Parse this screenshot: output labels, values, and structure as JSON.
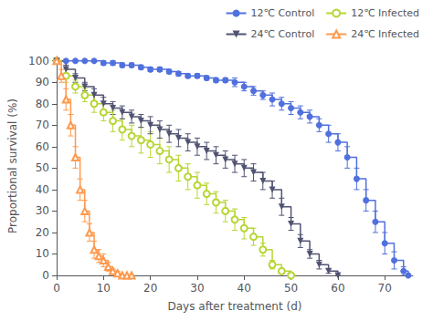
{
  "chart_data": {
    "type": "step",
    "xlabel": "Days after treatment (d)",
    "ylabel": "Proportional survival (%)",
    "xlim": [
      0,
      76
    ],
    "ylim": [
      0,
      102
    ],
    "xticks": [
      0,
      10,
      20,
      30,
      40,
      50,
      60,
      70
    ],
    "yticks": [
      0,
      10,
      20,
      30,
      40,
      50,
      60,
      70,
      80,
      90,
      100
    ],
    "grid": false,
    "legend": "upper right",
    "series": [
      {
        "name": "12℃ Control",
        "marker": "filled_circle",
        "x": [
          0,
          2,
          4,
          6,
          8,
          10,
          12,
          14,
          16,
          18,
          20,
          22,
          24,
          26,
          28,
          30,
          32,
          34,
          36,
          38,
          40,
          42,
          44,
          46,
          48,
          50,
          52,
          54,
          56,
          58,
          60,
          62,
          64,
          66,
          68,
          70,
          72,
          74,
          75
        ],
        "values": [
          100,
          100,
          100,
          100,
          100,
          99,
          99,
          98,
          98,
          97,
          96,
          96,
          95,
          94,
          93,
          93,
          92,
          91,
          91,
          90,
          88,
          86,
          84,
          82,
          80,
          78,
          76,
          74,
          70,
          66,
          62,
          55,
          45,
          35,
          25,
          15,
          7,
          2,
          0
        ],
        "yerr": [
          0,
          0,
          0,
          0,
          0,
          1,
          1,
          1,
          1,
          1,
          1,
          1,
          1,
          1,
          1,
          1,
          1,
          1,
          1,
          2,
          2,
          2,
          2,
          3,
          3,
          3,
          3,
          3,
          3,
          4,
          4,
          5,
          5,
          5,
          5,
          5,
          4,
          2,
          0
        ]
      },
      {
        "name": "12℃ Infected",
        "marker": "open_circle",
        "x": [
          0,
          2,
          4,
          6,
          8,
          10,
          12,
          14,
          16,
          18,
          20,
          22,
          24,
          26,
          28,
          30,
          32,
          34,
          36,
          38,
          40,
          42,
          44,
          46,
          48,
          50
        ],
        "values": [
          100,
          93,
          88,
          84,
          80,
          76,
          72,
          68,
          65,
          63,
          61,
          58,
          54,
          50,
          46,
          42,
          38,
          34,
          30,
          26,
          22,
          18,
          12,
          5,
          2,
          0
        ],
        "yerr": [
          0,
          3,
          3,
          3,
          4,
          4,
          5,
          5,
          5,
          6,
          6,
          6,
          6,
          6,
          6,
          6,
          5,
          5,
          5,
          5,
          5,
          4,
          3,
          2,
          1,
          0
        ]
      },
      {
        "name": "24℃ Control",
        "marker": "filled_triangle_down",
        "x": [
          0,
          2,
          4,
          6,
          8,
          10,
          12,
          14,
          16,
          18,
          20,
          22,
          24,
          26,
          28,
          30,
          32,
          34,
          36,
          38,
          40,
          42,
          44,
          46,
          48,
          50,
          52,
          54,
          56,
          58,
          60
        ],
        "values": [
          100,
          96,
          92,
          88,
          84,
          80,
          78,
          76,
          74,
          72,
          70,
          68,
          66,
          64,
          62,
          60,
          58,
          56,
          54,
          52,
          50,
          48,
          44,
          40,
          32,
          24,
          16,
          10,
          5,
          2,
          0
        ],
        "yerr": [
          0,
          2,
          2,
          2,
          3,
          3,
          3,
          3,
          3,
          3,
          4,
          4,
          4,
          4,
          4,
          4,
          4,
          4,
          4,
          4,
          4,
          4,
          4,
          4,
          4,
          3,
          3,
          2,
          2,
          1,
          0
        ]
      },
      {
        "name": "24℃ Infected",
        "marker": "open_triangle_up",
        "x": [
          0,
          1,
          2,
          3,
          4,
          5,
          6,
          7,
          8,
          9,
          10,
          11,
          12,
          13,
          14,
          15,
          16
        ],
        "values": [
          100,
          93,
          82,
          70,
          55,
          40,
          30,
          20,
          12,
          9,
          7,
          4,
          2,
          1,
          0,
          0,
          0
        ],
        "yerr": [
          0,
          3,
          5,
          5,
          5,
          5,
          5,
          4,
          4,
          3,
          3,
          2,
          1,
          1,
          0,
          0,
          0
        ]
      }
    ]
  }
}
